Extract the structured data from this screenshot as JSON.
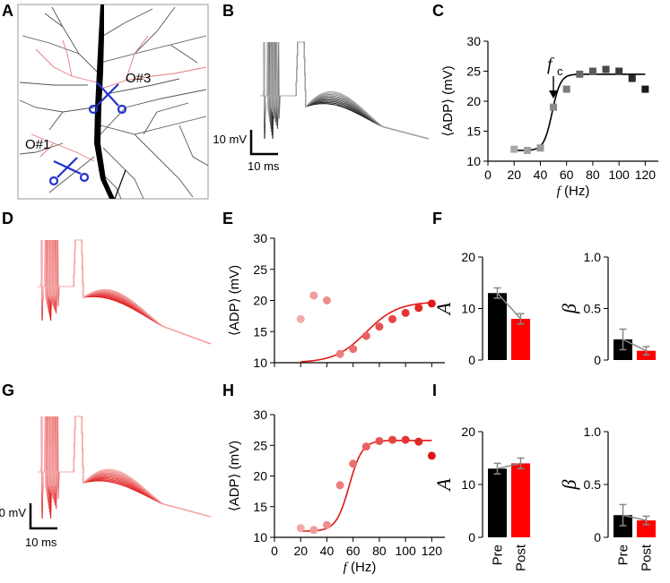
{
  "figure": {
    "panel_labels": [
      "A",
      "B",
      "C",
      "D",
      "E",
      "F",
      "G",
      "H",
      "I"
    ],
    "panel_a": {
      "label_o3": "O#3",
      "label_o1": "O#1"
    },
    "scalebar": {
      "voltage": "10 mV",
      "time": "10 ms"
    },
    "fc_label": "f",
    "fc_sub": "c"
  },
  "chart_data": [
    {
      "panel": "C",
      "type": "scatter",
      "ylabel": "⟨ADP⟩ (mV)",
      "xlabel_var": "f",
      "xlabel_unit": " (Hz)",
      "xlim": [
        0,
        130
      ],
      "ylim": [
        10,
        30
      ],
      "xticks": [
        0,
        20,
        40,
        60,
        80,
        100,
        120
      ],
      "yticks": [
        10,
        15,
        20,
        25,
        30
      ],
      "x": [
        20,
        30,
        40,
        50,
        60,
        70,
        80,
        90,
        100,
        110,
        120
      ],
      "y": [
        12.0,
        11.8,
        12.2,
        19.0,
        22.0,
        24.5,
        25.0,
        25.3,
        25.0,
        23.8,
        22.0
      ],
      "colors": [
        "#a8a8a8",
        "#a0a0a0",
        "#989898",
        "#8a8a8a",
        "#7c7c7c",
        "#6a6a6a",
        "#5a5a5a",
        "#4a4a4a",
        "#3a3a3a",
        "#2a2a2a",
        "#1a1a1a"
      ],
      "fit": {
        "base": 11.8,
        "amp": 12.7,
        "center": 49,
        "slope": 3.2
      }
    },
    {
      "panel": "E",
      "type": "scatter",
      "ylabel": "⟨ADP⟩ (mV)",
      "xlim": [
        0,
        130
      ],
      "ylim": [
        10,
        30
      ],
      "xticks": [
        0,
        20,
        40,
        60,
        80,
        100,
        120
      ],
      "yticks": [
        10,
        15,
        20,
        25,
        30
      ],
      "x": [
        20,
        30,
        40,
        50,
        60,
        70,
        80,
        90,
        100,
        110,
        120
      ],
      "y": [
        17.0,
        20.8,
        20.0,
        11.4,
        12.2,
        14.3,
        15.8,
        17.0,
        18.0,
        18.8,
        19.5
      ],
      "colors": [
        "#f4a9a9",
        "#f29a9a",
        "#f08c8c",
        "#ee7d7d",
        "#ec6f6f",
        "#ea6060",
        "#e85252",
        "#e64444",
        "#e43535",
        "#e22727",
        "#e01818"
      ],
      "fit": {
        "base": 10.0,
        "amp": 9.8,
        "center": 70,
        "slope": 12
      }
    },
    {
      "panel": "H",
      "type": "scatter",
      "ylabel": "⟨ADP⟩ (mV)",
      "xlabel_var": "f",
      "xlabel_unit": " (Hz)",
      "xlim": [
        0,
        130
      ],
      "ylim": [
        10,
        30
      ],
      "xticks": [
        0,
        20,
        40,
        60,
        80,
        100,
        120
      ],
      "yticks": [
        10,
        15,
        20,
        25,
        30
      ],
      "x": [
        20,
        30,
        40,
        50,
        60,
        70,
        80,
        90,
        100,
        110,
        120
      ],
      "y": [
        11.5,
        11.2,
        12.0,
        18.5,
        22.0,
        24.8,
        25.7,
        25.9,
        25.9,
        25.6,
        23.3
      ],
      "colors": [
        "#f4a9a9",
        "#f29a9a",
        "#f08c8c",
        "#ee7d7d",
        "#ec6f6f",
        "#ea6060",
        "#e85252",
        "#e64444",
        "#e43535",
        "#e22727",
        "#e01818"
      ],
      "fit": {
        "base": 11.0,
        "amp": 14.8,
        "center": 57,
        "slope": 5
      }
    },
    {
      "panel": "F-A",
      "type": "bar",
      "ylabel": "A",
      "categories": [
        "Pre",
        "Post"
      ],
      "values": [
        13.0,
        8.0
      ],
      "errors": [
        1.0,
        1.0
      ],
      "ylim": [
        0,
        20
      ],
      "yticks": [
        0,
        10,
        20
      ],
      "ytick_labels": [
        "0",
        "10",
        "20"
      ],
      "colors": [
        "#000000",
        "#ff0000"
      ]
    },
    {
      "panel": "F-β",
      "type": "bar",
      "ylabel": "β",
      "categories": [
        "Pre",
        "Post"
      ],
      "values": [
        0.2,
        0.09
      ],
      "errors": [
        0.1,
        0.04
      ],
      "ylim": [
        0,
        1.0
      ],
      "yticks": [
        0,
        0.5,
        1.0
      ],
      "ytick_labels": [
        "0",
        "0.5",
        "1.0"
      ],
      "colors": [
        "#000000",
        "#ff0000"
      ]
    },
    {
      "panel": "I-A",
      "type": "bar",
      "ylabel": "A",
      "categories": [
        "Pre",
        "Post"
      ],
      "values": [
        13.0,
        14.0
      ],
      "errors": [
        1.0,
        1.0
      ],
      "ylim": [
        0,
        20
      ],
      "yticks": [
        0,
        10,
        20
      ],
      "ytick_labels": [
        "0",
        "10",
        "20"
      ],
      "colors": [
        "#000000",
        "#ff0000"
      ]
    },
    {
      "panel": "I-β",
      "type": "bar",
      "ylabel": "β",
      "categories": [
        "Pre",
        "Post"
      ],
      "values": [
        0.21,
        0.16
      ],
      "errors": [
        0.1,
        0.04
      ],
      "ylim": [
        0,
        1.0
      ],
      "yticks": [
        0,
        0.5,
        1.0
      ],
      "ytick_labels": [
        "0",
        "0.5",
        "1.0"
      ],
      "colors": [
        "#000000",
        "#ff0000"
      ]
    }
  ]
}
